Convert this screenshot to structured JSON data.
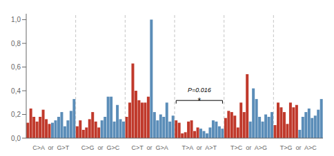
{
  "chart_data": {
    "type": "bar",
    "categories": [
      null,
      null,
      null,
      null,
      null,
      null,
      null,
      "C>A  or  G>T",
      null,
      null,
      null,
      null,
      null,
      null,
      null,
      null,
      null,
      null,
      null,
      null,
      null,
      null,
      null,
      "C>G  or  G>C",
      null,
      null,
      null,
      null,
      null,
      null,
      null,
      null,
      null,
      null,
      null,
      null,
      null,
      null,
      null,
      "C>T  or  G>A",
      null,
      null,
      null,
      null,
      null,
      null,
      null,
      null,
      null,
      null,
      null,
      null,
      null,
      null,
      null,
      "T>A  or  A>T",
      null,
      null,
      null,
      null,
      null,
      null,
      null,
      null,
      null,
      null,
      null,
      null,
      null,
      null,
      null,
      "T>C  or  A>G",
      null,
      null,
      null,
      null,
      null,
      null,
      null,
      null,
      null,
      null,
      null,
      null,
      null,
      null,
      null,
      "T>G  or  A>C",
      null,
      null,
      null,
      null,
      null,
      null,
      null,
      null
    ],
    "values": [
      0.13,
      0.25,
      0.18,
      0.14,
      0.18,
      0.24,
      0.16,
      0.12,
      0.13,
      0.15,
      0.18,
      0.22,
      0.1,
      0.15,
      0.23,
      0.33,
      0.1,
      0.15,
      0.07,
      0.09,
      0.16,
      0.22,
      0.14,
      0.09,
      0.15,
      0.18,
      0.35,
      0.35,
      0.14,
      0.28,
      0.16,
      0.14,
      0.18,
      0.3,
      0.63,
      0.4,
      0.32,
      0.3,
      0.3,
      0.35,
      1.0,
      0.22,
      0.15,
      0.2,
      0.18,
      0.3,
      0.14,
      0.19,
      0.15,
      0.13,
      0.04,
      0.05,
      0.14,
      0.15,
      0.06,
      0.09,
      0.08,
      0.06,
      0.04,
      0.09,
      0.15,
      0.14,
      0.1,
      0.08,
      0.17,
      0.23,
      0.22,
      0.19,
      0.09,
      0.3,
      0.22,
      0.54,
      0.14,
      0.42,
      0.33,
      0.18,
      0.14,
      0.2,
      0.18,
      0.22,
      0.11,
      0.3,
      0.26,
      0.22,
      0.12,
      0.3,
      0.26,
      0.28,
      0.07,
      0.18,
      0.22,
      0.25,
      0.17,
      0.19,
      0.24,
      0.33
    ],
    "colors": [
      "#c0392b",
      "#c0392b",
      "#c0392b",
      "#c0392b",
      "#c0392b",
      "#c0392b",
      "#c0392b",
      "#c0392b",
      "#5b8db8",
      "#5b8db8",
      "#5b8db8",
      "#5b8db8",
      "#5b8db8",
      "#5b8db8",
      "#5b8db8",
      "#5b8db8",
      "#c0392b",
      "#c0392b",
      "#c0392b",
      "#c0392b",
      "#c0392b",
      "#c0392b",
      "#c0392b",
      "#c0392b",
      "#5b8db8",
      "#5b8db8",
      "#5b8db8",
      "#5b8db8",
      "#5b8db8",
      "#5b8db8",
      "#5b8db8",
      "#5b8db8",
      "#c0392b",
      "#c0392b",
      "#c0392b",
      "#c0392b",
      "#c0392b",
      "#c0392b",
      "#c0392b",
      "#c0392b",
      "#5b8db8",
      "#5b8db8",
      "#5b8db8",
      "#5b8db8",
      "#5b8db8",
      "#5b8db8",
      "#5b8db8",
      "#5b8db8",
      "#c0392b",
      "#c0392b",
      "#c0392b",
      "#c0392b",
      "#c0392b",
      "#c0392b",
      "#c0392b",
      "#c0392b",
      "#5b8db8",
      "#5b8db8",
      "#5b8db8",
      "#5b8db8",
      "#5b8db8",
      "#5b8db8",
      "#5b8db8",
      "#5b8db8",
      "#c0392b",
      "#c0392b",
      "#c0392b",
      "#c0392b",
      "#c0392b",
      "#c0392b",
      "#c0392b",
      "#c0392b",
      "#5b8db8",
      "#5b8db8",
      "#5b8db8",
      "#5b8db8",
      "#5b8db8",
      "#5b8db8",
      "#5b8db8",
      "#5b8db8",
      "#c0392b",
      "#c0392b",
      "#c0392b",
      "#c0392b",
      "#c0392b",
      "#c0392b",
      "#c0392b",
      "#c0392b",
      "#5b8db8",
      "#5b8db8",
      "#5b8db8",
      "#5b8db8",
      "#5b8db8",
      "#5b8db8",
      "#5b8db8",
      "#5b8db8"
    ],
    "ylim": [
      0,
      1.05
    ],
    "yticks": [
      {
        "value": 0.0,
        "label": "0,0"
      },
      {
        "value": 0.2,
        "label": "0,2"
      },
      {
        "value": 0.4,
        "label": "0,4"
      },
      {
        "value": 0.6,
        "label": "0,6"
      },
      {
        "value": 0.8,
        "label": "0,8"
      },
      {
        "value": 1.0,
        "label": "1,0"
      }
    ],
    "annotations": [
      {
        "text": "P=0.016",
        "category": "T>A  or  A>T"
      },
      {
        "text": "*",
        "category": "T>A  or  A>T"
      }
    ],
    "grid": false
  }
}
